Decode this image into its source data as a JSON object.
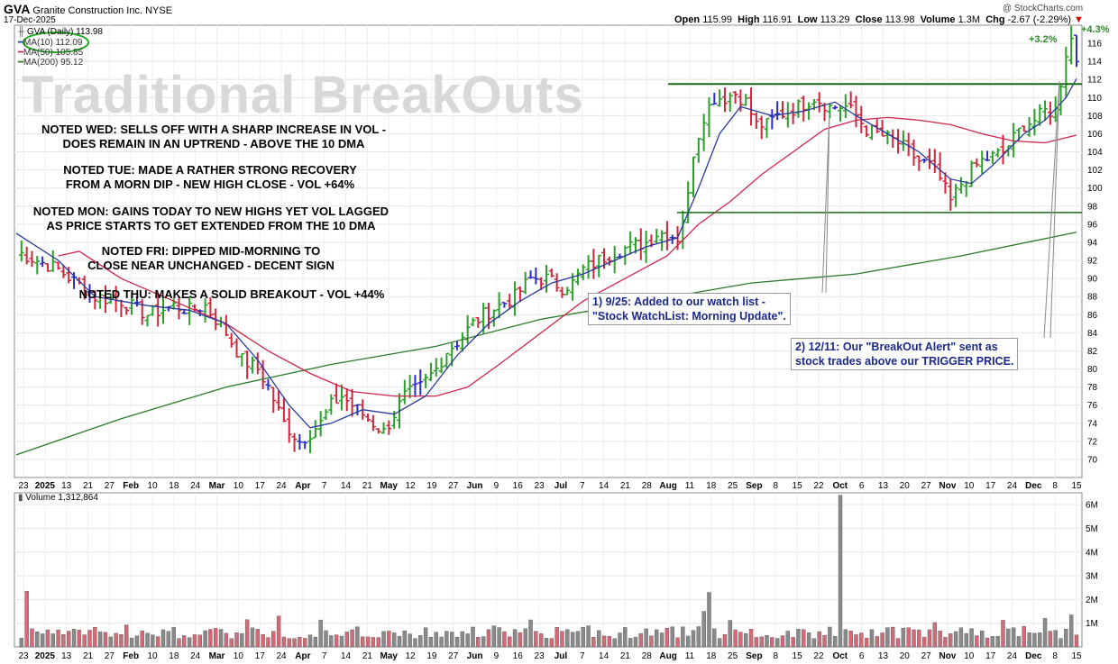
{
  "header": {
    "symbol": "GVA",
    "company": "Granite Construction Inc.",
    "exchange": "NYSE",
    "date": "17-Dec-2025",
    "copyright": "@ StockCharts.com",
    "open_label": "Open",
    "open": "115.99",
    "high_label": "High",
    "high": "116.91",
    "low_label": "Low",
    "low": "113.29",
    "close_label": "Close",
    "close": "113.98",
    "volume_label": "Volume",
    "volume": "1.3M",
    "chg_label": "Chg",
    "chg": "-2.67 (-2.29%)"
  },
  "watermark": "Traditional BreakOuts",
  "legend": {
    "price": "GVA (Daily) 113.98",
    "ma10": "MA(10) 112.09",
    "ma50": "MA(50) 105.85",
    "ma200": "MA(200) 95.12",
    "volume": "Volume 1,312,864"
  },
  "notes": [
    {
      "line1": "NOTED WED: SELLS OFF WITH A SHARP INCREASE IN VOL -",
      "line2": "DOES REMAIN IN AN UPTREND - ABOVE THE 10 DMA"
    },
    {
      "line1": "NOTED TUE: MADE A RATHER STRONG RECOVERY",
      "line2": "FROM A MORN DIP - NEW HIGH CLOSE - VOL +64%"
    },
    {
      "line1": "NOTED MON: GAINS TODAY TO NEW HIGHS YET VOL LAGGED",
      "line2": "AS PRICE STARTS TO GET EXTENDED FROM THE 10 DMA"
    },
    {
      "line1": "NOTED FRI: DIPPED MID-MORNING TO",
      "line2": "CLOSE NEAR UNCHANGED - DECENT SIGN"
    },
    {
      "line1": "NOTED THU: MAKES A SOLID BREAKOUT - VOL +44%",
      "line2": ""
    }
  ],
  "callouts": [
    {
      "line1": "1) 9/25: Added to our watch list -",
      "line2": "\"Stock WatchList: Morning Update\"."
    },
    {
      "line1": "2) 12/11: Our \"BreakOut Alert\" sent as",
      "line2": "stock trades above our TRIGGER PRICE."
    }
  ],
  "gain_labels": {
    "plus43": "+4.3%",
    "plus32": "+3.2%"
  },
  "colors": {
    "up": "#2aa02a",
    "down": "#d0253b",
    "neutral": "#2b2bc8",
    "ma10": "#2a3a9a",
    "ma50": "#d0254a",
    "ma200": "#2a7a2a",
    "vol_up": "#8a8a8a",
    "vol_down": "#d46a78",
    "trendline": "#1a6a1a",
    "ellipse": "#22aa22"
  },
  "chart_data": {
    "type": "ohlc",
    "price_ylim": [
      68,
      118
    ],
    "price_ticks": [
      70,
      72,
      74,
      76,
      78,
      80,
      82,
      84,
      86,
      88,
      90,
      92,
      94,
      96,
      98,
      100,
      102,
      104,
      106,
      108,
      110,
      112,
      114,
      116
    ],
    "volume_ticks": [
      "1M",
      "2M",
      "3M",
      "4M",
      "5M",
      "6M"
    ],
    "volume_ylim_millions": [
      0,
      6.5
    ],
    "x_ticks": [
      "23",
      "2025",
      "13",
      "21",
      "27",
      "Feb",
      "10",
      "18",
      "24",
      "Mar",
      "10",
      "17",
      "24",
      "Apr",
      "7",
      "14",
      "21",
      "May",
      "12",
      "19",
      "27",
      "Jun",
      "9",
      "16",
      "23",
      "Jul",
      "7",
      "14",
      "21",
      "28",
      "Aug",
      "11",
      "18",
      "25",
      "Sep",
      "8",
      "15",
      "22",
      "Oct",
      "6",
      "13",
      "20",
      "27",
      "Nov",
      "10",
      "17",
      "24",
      "Dec",
      "8",
      "15"
    ],
    "horizontal_lines": [
      111.5,
      97.3
    ],
    "close_path": [
      [
        0,
        93
      ],
      [
        8,
        91
      ],
      [
        15,
        88
      ],
      [
        20,
        87.5
      ],
      [
        25,
        86
      ],
      [
        30,
        87
      ],
      [
        33,
        86.5
      ],
      [
        36,
        87
      ],
      [
        40,
        84
      ],
      [
        43,
        81
      ],
      [
        46,
        80
      ],
      [
        48,
        78
      ],
      [
        51,
        74
      ],
      [
        54,
        72
      ],
      [
        56,
        73
      ],
      [
        58,
        74
      ],
      [
        60,
        76
      ],
      [
        62,
        77
      ],
      [
        64,
        76
      ],
      [
        66,
        75
      ],
      [
        68,
        74
      ],
      [
        70,
        73
      ],
      [
        72,
        75
      ],
      [
        74,
        77
      ],
      [
        77,
        78
      ],
      [
        80,
        80
      ],
      [
        82,
        82
      ],
      [
        84,
        83
      ],
      [
        87,
        85
      ],
      [
        89,
        86
      ],
      [
        92,
        87
      ],
      [
        95,
        88
      ],
      [
        98,
        90
      ],
      [
        101,
        90
      ],
      [
        104,
        89
      ],
      [
        106,
        89.5
      ],
      [
        108,
        91
      ],
      [
        111,
        92
      ],
      [
        114,
        93
      ],
      [
        117,
        93.5
      ],
      [
        120,
        94
      ],
      [
        122,
        95
      ],
      [
        124,
        95
      ],
      [
        126,
        94.5
      ],
      [
        128,
        99
      ],
      [
        129,
        104
      ],
      [
        131,
        108
      ],
      [
        133,
        110
      ],
      [
        135,
        110
      ],
      [
        137,
        110.5
      ],
      [
        139,
        109.5
      ],
      [
        141,
        107
      ],
      [
        143,
        107
      ],
      [
        145,
        108
      ],
      [
        147,
        108.5
      ],
      [
        149,
        109
      ],
      [
        152,
        110
      ],
      [
        155,
        109
      ],
      [
        158,
        109
      ],
      [
        160,
        108
      ],
      [
        162,
        106.5
      ],
      [
        164,
        106
      ],
      [
        166,
        105.5
      ],
      [
        168,
        105
      ],
      [
        170,
        104
      ],
      [
        172,
        103
      ],
      [
        174,
        102.5
      ],
      [
        176,
        101
      ],
      [
        178,
        98.5
      ],
      [
        180,
        100.5
      ],
      [
        182,
        102
      ],
      [
        184,
        103
      ],
      [
        186,
        103.5
      ],
      [
        188,
        104
      ],
      [
        190,
        105.5
      ],
      [
        192,
        107
      ],
      [
        194,
        107.5
      ],
      [
        196,
        108.5
      ],
      [
        198,
        108.5
      ],
      [
        200,
        115
      ],
      [
        201,
        116.5
      ],
      [
        202,
        113.98
      ]
    ],
    "ma10_path": [
      [
        0,
        95
      ],
      [
        8,
        92
      ],
      [
        15,
        88
      ],
      [
        25,
        87
      ],
      [
        33,
        86.5
      ],
      [
        40,
        85
      ],
      [
        46,
        81
      ],
      [
        52,
        76
      ],
      [
        56,
        73.5
      ],
      [
        60,
        74
      ],
      [
        66,
        75.5
      ],
      [
        72,
        75
      ],
      [
        78,
        77
      ],
      [
        84,
        81.5
      ],
      [
        90,
        85
      ],
      [
        96,
        87.5
      ],
      [
        102,
        89.5
      ],
      [
        108,
        90.5
      ],
      [
        114,
        92
      ],
      [
        120,
        93.5
      ],
      [
        126,
        94.5
      ],
      [
        130,
        100
      ],
      [
        134,
        106
      ],
      [
        138,
        109
      ],
      [
        144,
        108
      ],
      [
        150,
        108.5
      ],
      [
        156,
        109.5
      ],
      [
        160,
        108
      ],
      [
        166,
        106
      ],
      [
        172,
        104
      ],
      [
        178,
        101
      ],
      [
        182,
        100.5
      ],
      [
        186,
        102.5
      ],
      [
        192,
        106
      ],
      [
        196,
        107.5
      ],
      [
        200,
        110
      ],
      [
        202,
        112.09
      ]
    ],
    "ma50_path": [
      [
        8,
        92.5
      ],
      [
        12,
        93
      ],
      [
        20,
        90
      ],
      [
        30,
        87.5
      ],
      [
        40,
        85
      ],
      [
        48,
        82
      ],
      [
        56,
        79.5
      ],
      [
        64,
        77.5
      ],
      [
        72,
        77
      ],
      [
        80,
        77
      ],
      [
        86,
        78
      ],
      [
        92,
        80.5
      ],
      [
        100,
        84
      ],
      [
        108,
        87.5
      ],
      [
        116,
        90
      ],
      [
        124,
        92.5
      ],
      [
        130,
        96
      ],
      [
        136,
        98.5
      ],
      [
        142,
        101.5
      ],
      [
        148,
        104
      ],
      [
        154,
        106.5
      ],
      [
        160,
        107.5
      ],
      [
        166,
        107.8
      ],
      [
        172,
        107.5
      ],
      [
        178,
        107
      ],
      [
        184,
        106
      ],
      [
        190,
        105.2
      ],
      [
        196,
        105
      ],
      [
        202,
        105.85
      ]
    ],
    "ma200_path": [
      [
        0,
        70.5
      ],
      [
        20,
        74.5
      ],
      [
        40,
        78
      ],
      [
        60,
        80.5
      ],
      [
        80,
        82.5
      ],
      [
        100,
        85.5
      ],
      [
        120,
        87.5
      ],
      [
        140,
        89.5
      ],
      [
        160,
        90.5
      ],
      [
        180,
        92.5
      ],
      [
        202,
        95.12
      ]
    ]
  }
}
